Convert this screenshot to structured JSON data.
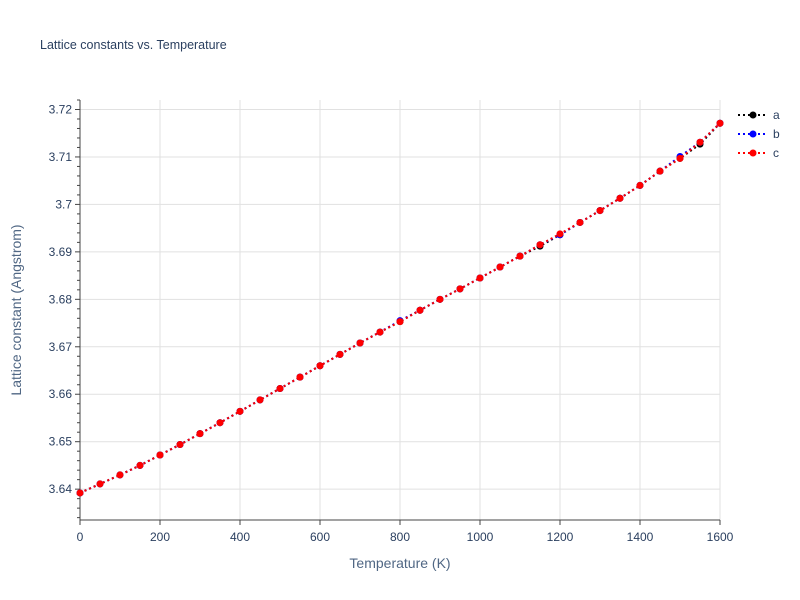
{
  "chart_data": {
    "type": "line",
    "title": "Lattice constants vs. Temperature",
    "xlabel": "Temperature (K)",
    "ylabel": "Lattice constant (Angstrom)",
    "xlim": [
      0,
      1600
    ],
    "ylim": [
      3.6335,
      3.722
    ],
    "xticks": [
      0,
      200,
      400,
      600,
      800,
      1000,
      1200,
      1400,
      1600
    ],
    "yticks": [
      3.64,
      3.65,
      3.66,
      3.67,
      3.68,
      3.69,
      3.7,
      3.71,
      3.72
    ],
    "ytick_labels": [
      "3.64",
      "3.65",
      "3.66",
      "3.67",
      "3.68",
      "3.69",
      "3.7",
      "3.71",
      "3.72"
    ],
    "grid": true,
    "legend_position": "top-right",
    "x": [
      0,
      50,
      100,
      150,
      200,
      250,
      300,
      350,
      400,
      450,
      500,
      550,
      600,
      650,
      700,
      750,
      800,
      850,
      900,
      950,
      1000,
      1050,
      1100,
      1150,
      1200,
      1250,
      1300,
      1350,
      1400,
      1450,
      1500,
      1550,
      1600
    ],
    "series": [
      {
        "name": "a",
        "color": "#000000",
        "values": [
          3.6392,
          3.6411,
          3.643,
          3.645,
          3.6472,
          3.6494,
          3.6517,
          3.654,
          3.6564,
          3.6588,
          3.6612,
          3.6636,
          3.666,
          3.6684,
          3.6708,
          3.6731,
          3.6753,
          3.6777,
          3.68,
          3.6822,
          3.6845,
          3.6868,
          3.6891,
          3.6912,
          3.6936,
          3.6962,
          3.6987,
          3.7013,
          3.704,
          3.707,
          3.7097,
          3.7127,
          3.7171
        ]
      },
      {
        "name": "b",
        "color": "#0000ff",
        "values": [
          3.6392,
          3.6411,
          3.643,
          3.645,
          3.6472,
          3.6494,
          3.6517,
          3.654,
          3.6564,
          3.6588,
          3.6612,
          3.6636,
          3.666,
          3.6684,
          3.6708,
          3.6731,
          3.6755,
          3.6777,
          3.68,
          3.6822,
          3.6845,
          3.6868,
          3.6891,
          3.6915,
          3.6936,
          3.6962,
          3.6987,
          3.7013,
          3.704,
          3.707,
          3.7101,
          3.7131,
          3.7171
        ]
      },
      {
        "name": "c",
        "color": "#ff0000",
        "values": [
          3.6392,
          3.6411,
          3.643,
          3.645,
          3.6472,
          3.6494,
          3.6517,
          3.654,
          3.6564,
          3.6588,
          3.6612,
          3.6636,
          3.666,
          3.6684,
          3.6708,
          3.6731,
          3.6753,
          3.6777,
          3.68,
          3.6822,
          3.6845,
          3.6868,
          3.6891,
          3.6915,
          3.6938,
          3.6962,
          3.6987,
          3.7013,
          3.704,
          3.707,
          3.7097,
          3.7131,
          3.7171
        ]
      }
    ]
  }
}
